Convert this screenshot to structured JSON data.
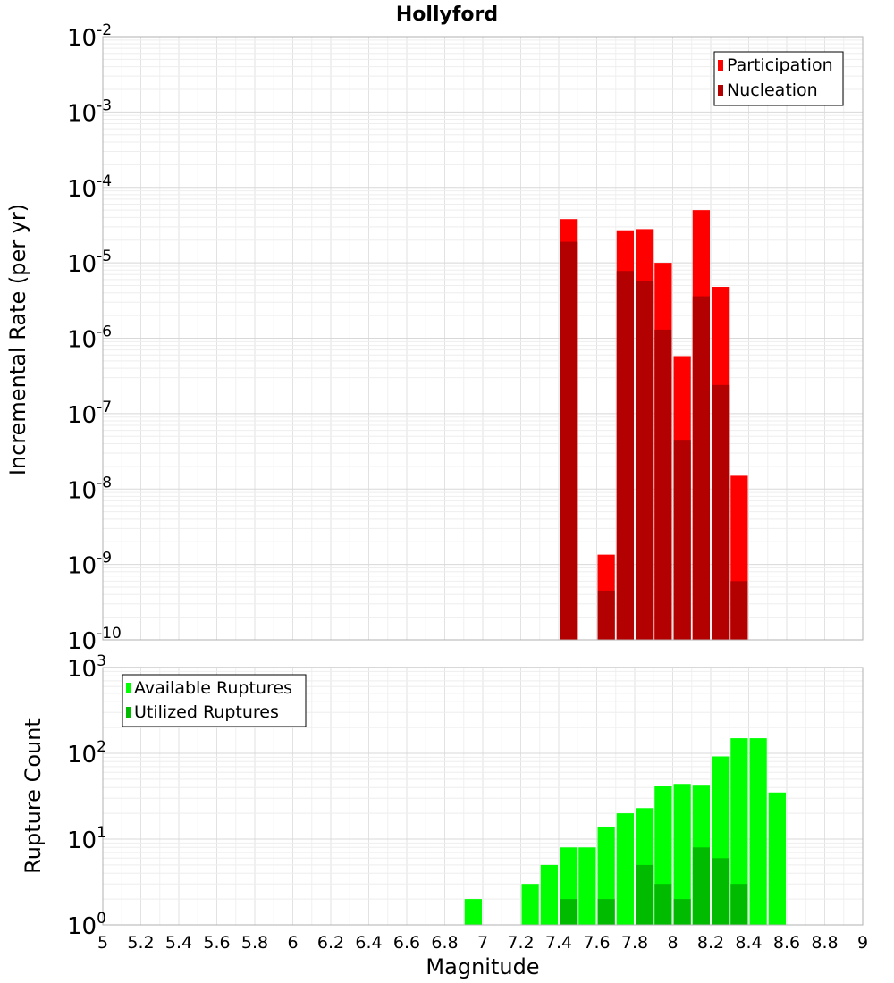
{
  "chart_data": [
    {
      "type": "bar",
      "title": "Hollyford",
      "xlabel": "",
      "ylabel": "Incremental Rate (per yr)",
      "yscale": "log",
      "ylim_exponents": [
        -10,
        -2
      ],
      "y_tick_exponents": [
        -10,
        -9,
        -8,
        -7,
        -6,
        -5,
        -4,
        -3,
        -2
      ],
      "xlim": [
        5,
        9
      ],
      "bin_width": 0.1,
      "grid": true,
      "legend_position": "top-right",
      "series": [
        {
          "name": "Participation",
          "color": "#ff0000",
          "x": [
            7.45,
            7.65,
            7.75,
            7.85,
            7.95,
            8.05,
            8.15,
            8.25,
            8.35
          ],
          "values": [
            3.8e-05,
            1.35e-09,
            2.7e-05,
            2.8e-05,
            1e-05,
            5.8e-07,
            5e-05,
            4.8e-06,
            1.5e-08
          ]
        },
        {
          "name": "Nucleation",
          "color": "#b30000",
          "x": [
            7.45,
            7.65,
            7.75,
            7.85,
            7.95,
            8.05,
            8.15,
            8.25,
            8.35
          ],
          "values": [
            1.9e-05,
            4.5e-10,
            7.8e-06,
            5.8e-06,
            1.3e-06,
            4.5e-08,
            3.6e-06,
            2.4e-07,
            6e-10
          ]
        }
      ]
    },
    {
      "type": "bar",
      "title": "",
      "xlabel": "Magnitude",
      "ylabel": "Rupture Count",
      "yscale": "log",
      "ylim_exponents": [
        0,
        3
      ],
      "y_tick_exponents": [
        0,
        1,
        2,
        3
      ],
      "xlim": [
        5,
        9
      ],
      "x_ticks": [
        "5",
        "5.2",
        "5.4",
        "5.6",
        "5.8",
        "6",
        "6.2",
        "6.4",
        "6.6",
        "6.8",
        "7",
        "7.2",
        "7.4",
        "7.6",
        "7.8",
        "8",
        "8.2",
        "8.4",
        "8.6",
        "8.8",
        "9"
      ],
      "bin_width": 0.1,
      "grid": true,
      "legend_position": "top-left",
      "series": [
        {
          "name": "Available Ruptures",
          "color": "#00ff00",
          "x": [
            6.95,
            7.15,
            7.25,
            7.35,
            7.45,
            7.55,
            7.65,
            7.75,
            7.85,
            7.95,
            8.05,
            8.15,
            8.25,
            8.35,
            8.45,
            8.55
          ],
          "values": [
            2,
            1,
            3,
            5,
            8,
            8,
            14,
            20,
            23,
            42,
            44,
            43,
            92,
            150,
            150,
            35
          ]
        },
        {
          "name": "Utilized Ruptures",
          "color": "#00bb00",
          "x": [
            7.45,
            7.55,
            7.65,
            7.75,
            7.85,
            7.95,
            8.05,
            8.15,
            8.25,
            8.35
          ],
          "values": [
            2,
            1,
            2,
            1,
            5,
            3,
            2,
            8,
            6,
            3
          ]
        }
      ]
    }
  ]
}
